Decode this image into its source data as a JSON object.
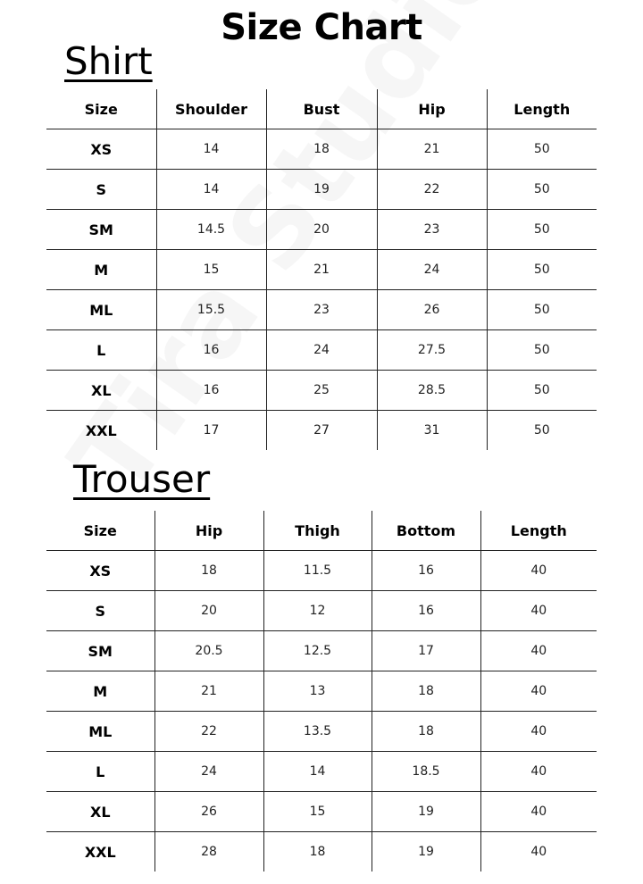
{
  "title": "Size Chart",
  "watermark": "Tira Studio",
  "shirt": {
    "heading": "Shirt",
    "columns": [
      "Size",
      "Shoulder",
      "Bust",
      "Hip",
      "Length"
    ],
    "rows": [
      [
        "XS",
        "14",
        "18",
        "21",
        "50"
      ],
      [
        "S",
        "14",
        "19",
        "22",
        "50"
      ],
      [
        "SM",
        "14.5",
        "20",
        "23",
        "50"
      ],
      [
        "M",
        "15",
        "21",
        "24",
        "50"
      ],
      [
        "ML",
        "15.5",
        "23",
        "26",
        "50"
      ],
      [
        "L",
        "16",
        "24",
        "27.5",
        "50"
      ],
      [
        "XL",
        "16",
        "25",
        "28.5",
        "50"
      ],
      [
        "XXL",
        "17",
        "27",
        "31",
        "50"
      ]
    ]
  },
  "trouser": {
    "heading": "Trouser",
    "columns": [
      "Size",
      "Hip",
      "Thigh",
      "Bottom",
      "Length"
    ],
    "rows": [
      [
        "XS",
        "18",
        "11.5",
        "16",
        "40"
      ],
      [
        "S",
        "20",
        "12",
        "16",
        "40"
      ],
      [
        "SM",
        "20.5",
        "12.5",
        "17",
        "40"
      ],
      [
        "M",
        "21",
        "13",
        "18",
        "40"
      ],
      [
        "ML",
        "22",
        "13.5",
        "18",
        "40"
      ],
      [
        "L",
        "24",
        "14",
        "18.5",
        "40"
      ],
      [
        "XL",
        "26",
        "15",
        "19",
        "40"
      ],
      [
        "XXL",
        "28",
        "18",
        "19",
        "40"
      ]
    ]
  }
}
